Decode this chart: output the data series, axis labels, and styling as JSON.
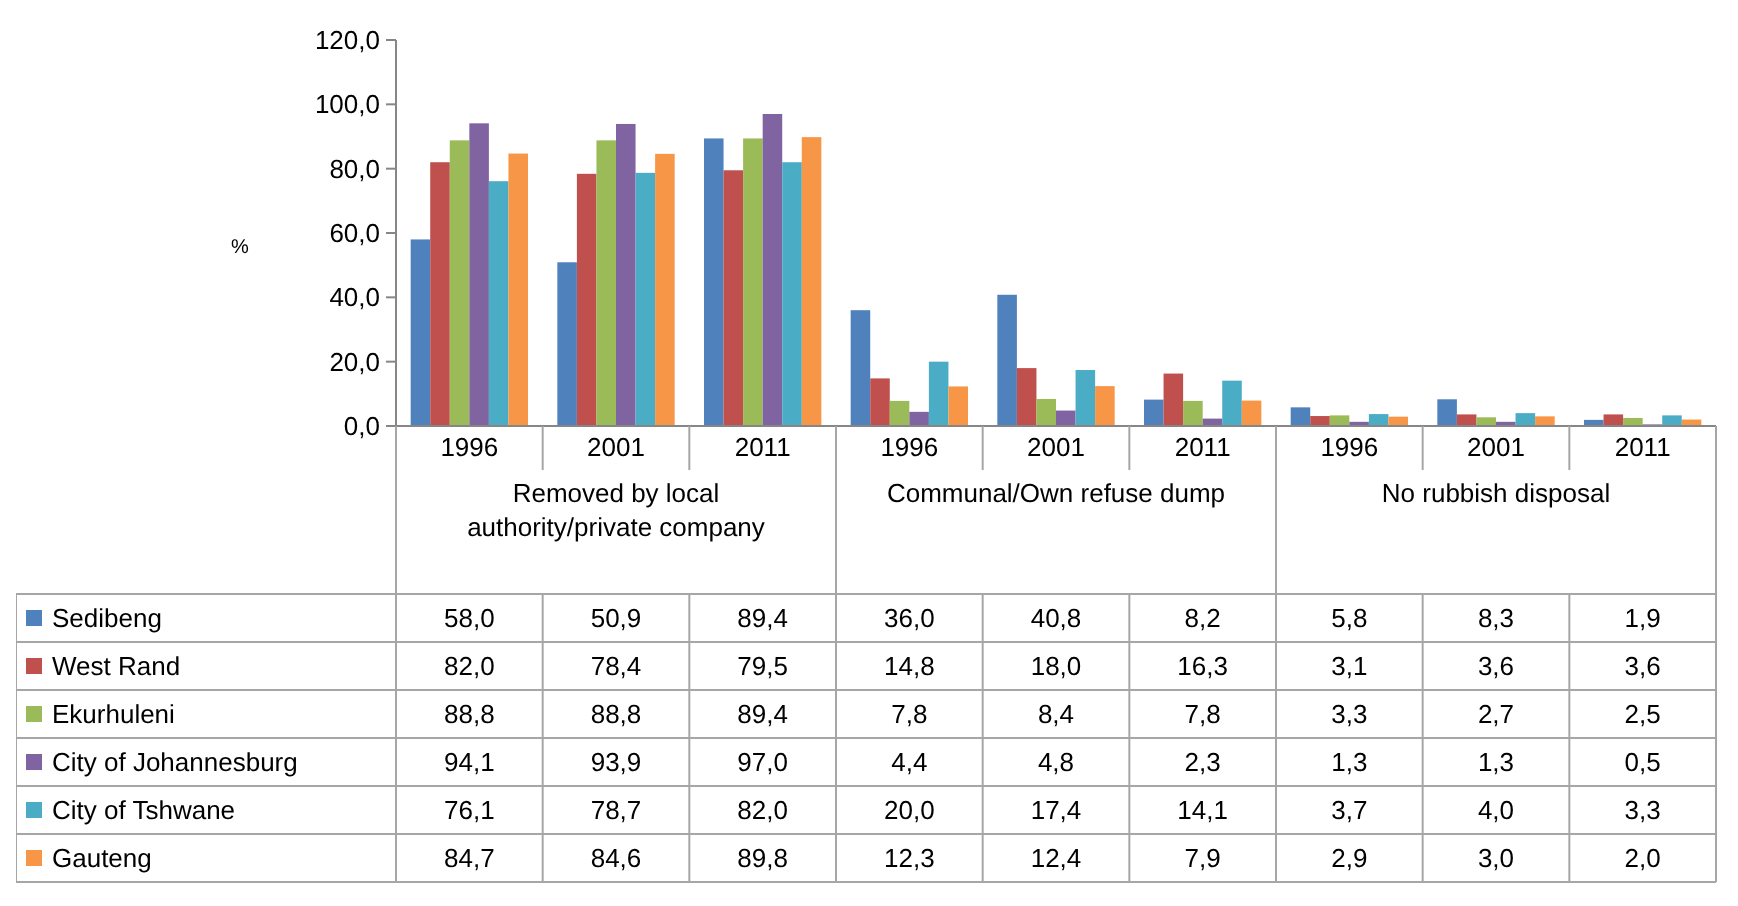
{
  "chart_data": {
    "type": "bar",
    "ylabel": "%",
    "categories": [
      "1996",
      "2001",
      "2011",
      "1996",
      "2001",
      "2011",
      "1996",
      "2001",
      "2011"
    ],
    "annotations": [
      "Removed by local authority/private company",
      "Communal/Own refuse dump",
      "No rubbish disposal"
    ],
    "ylim": [
      0,
      120
    ],
    "yticks": [
      {
        "value": 0,
        "label": "0,0"
      },
      {
        "value": 20,
        "label": "20,0"
      },
      {
        "value": 40,
        "label": "40,0"
      },
      {
        "value": 60,
        "label": "60,0"
      },
      {
        "value": 80,
        "label": "80,0"
      },
      {
        "value": 100,
        "label": "100,0"
      },
      {
        "value": 120,
        "label": "120,0"
      }
    ],
    "grid": false,
    "legend": "left",
    "series": [
      {
        "name": "Sedibeng",
        "color": "#4f81bd",
        "values": [
          58.0,
          50.9,
          89.4,
          36.0,
          40.8,
          8.2,
          5.8,
          8.3,
          1.9
        ],
        "value_labels": [
          "58,0",
          "50,9",
          "89,4",
          "36,0",
          "40,8",
          "8,2",
          "5,8",
          "8,3",
          "1,9"
        ]
      },
      {
        "name": "West Rand",
        "color": "#c0504d",
        "values": [
          82.0,
          78.4,
          79.5,
          14.8,
          18.0,
          16.3,
          3.1,
          3.6,
          3.6
        ],
        "value_labels": [
          "82,0",
          "78,4",
          "79,5",
          "14,8",
          "18,0",
          "16,3",
          "3,1",
          "3,6",
          "3,6"
        ]
      },
      {
        "name": "Ekurhuleni",
        "color": "#9bbb59",
        "values": [
          88.8,
          88.8,
          89.4,
          7.8,
          8.4,
          7.8,
          3.3,
          2.7,
          2.5
        ],
        "value_labels": [
          "88,8",
          "88,8",
          "89,4",
          "7,8",
          "8,4",
          "7,8",
          "3,3",
          "2,7",
          "2,5"
        ]
      },
      {
        "name": "City of Johannesburg",
        "color": "#8064a2",
        "values": [
          94.1,
          93.9,
          97.0,
          4.4,
          4.8,
          2.3,
          1.3,
          1.3,
          0.5
        ],
        "value_labels": [
          "94,1",
          "93,9",
          "97,0",
          "4,4",
          "4,8",
          "2,3",
          "1,3",
          "1,3",
          "0,5"
        ]
      },
      {
        "name": "City of Tshwane",
        "color": "#4bacc6",
        "values": [
          76.1,
          78.7,
          82.0,
          20.0,
          17.4,
          14.1,
          3.7,
          4.0,
          3.3
        ],
        "value_labels": [
          "76,1",
          "78,7",
          "82,0",
          "20,0",
          "17,4",
          "14,1",
          "3,7",
          "4,0",
          "3,3"
        ]
      },
      {
        "name": "Gauteng",
        "color": "#f79646",
        "values": [
          84.7,
          84.6,
          89.8,
          12.3,
          12.4,
          7.9,
          2.9,
          3.0,
          2.0
        ],
        "value_labels": [
          "84,7",
          "84,6",
          "89,8",
          "12,3",
          "12,4",
          "7,9",
          "2,9",
          "3,0",
          "2,0"
        ]
      }
    ]
  }
}
